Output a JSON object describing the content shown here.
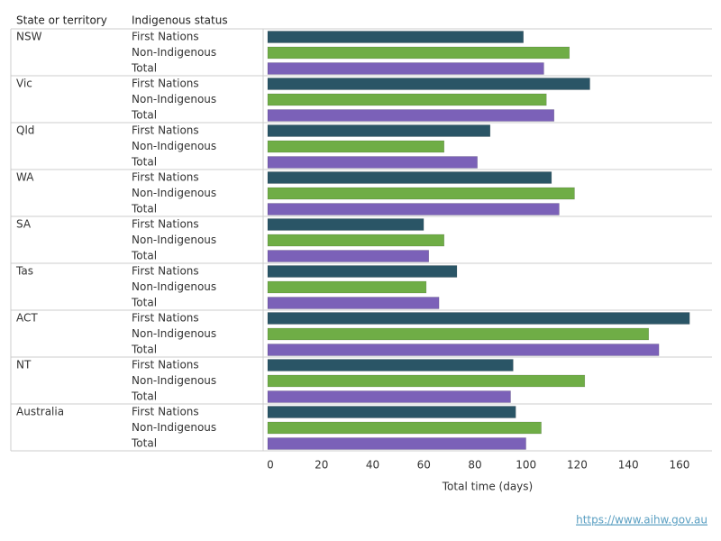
{
  "chart_data": {
    "type": "bar",
    "orientation": "horizontal",
    "category_header": "State or territory",
    "group_header": "Indigenous status",
    "x_label": "Total time (days)",
    "source": "https://www.aihw.gov.au",
    "categories": [
      "NSW",
      "Vic",
      "Qld",
      "WA",
      "SA",
      "Tas",
      "ACT",
      "NT",
      "Australia"
    ],
    "series": [
      {
        "name": "First Nations",
        "color": "#2a5566",
        "values": [
          100,
          126,
          87,
          111,
          61,
          74,
          165,
          96,
          97
        ]
      },
      {
        "name": "Non-Indigenous",
        "color": "#6fad46",
        "values": [
          118,
          109,
          69,
          120,
          69,
          62,
          149,
          124,
          107
        ]
      },
      {
        "name": "Total",
        "color": "#7b61b8",
        "values": [
          108,
          112,
          82,
          114,
          63,
          67,
          153,
          95,
          101
        ]
      }
    ],
    "xlim": [
      0,
      172
    ],
    "xticks": [
      0,
      20,
      40,
      60,
      80,
      100,
      120,
      140,
      160
    ],
    "grid": false
  }
}
